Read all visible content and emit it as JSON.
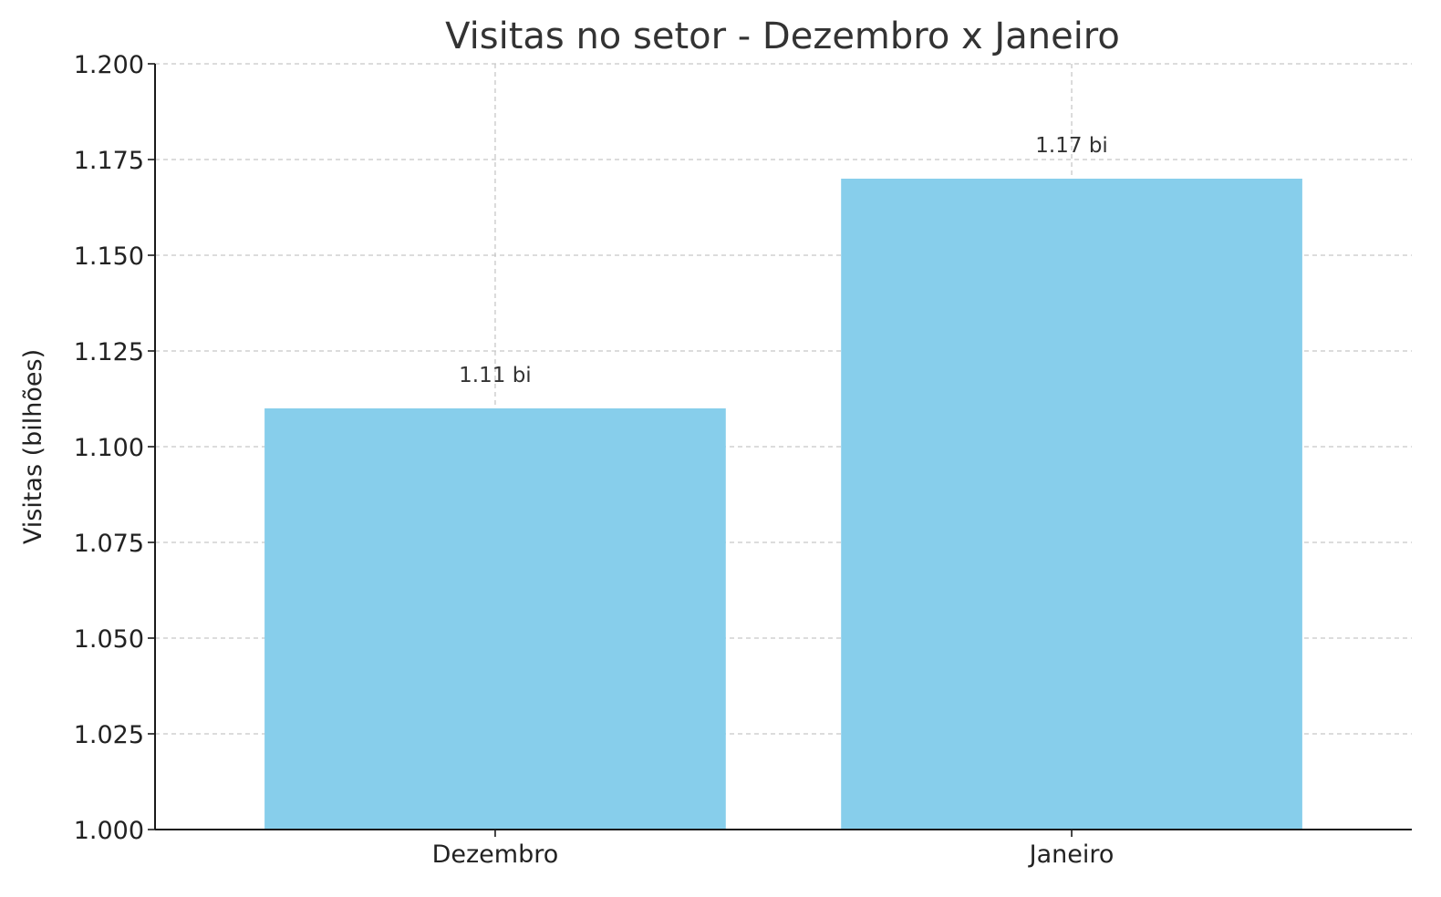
{
  "chart_data": {
    "type": "bar",
    "title": "Visitas no setor - Dezembro x Janeiro",
    "xlabel": "",
    "ylabel": "Visitas (bilhões)",
    "categories": [
      "Dezembro",
      "Janeiro"
    ],
    "values": [
      1.11,
      1.17
    ],
    "data_labels": [
      "1.11 bi",
      "1.17 bi"
    ],
    "ylim": [
      1.0,
      1.2
    ],
    "yticks": [
      1.0,
      1.025,
      1.05,
      1.075,
      1.1,
      1.125,
      1.15,
      1.175,
      1.2
    ],
    "ytick_labels": [
      "1.000",
      "1.025",
      "1.050",
      "1.075",
      "1.100",
      "1.125",
      "1.150",
      "1.175",
      "1.200"
    ],
    "grid": true,
    "legend": "none",
    "colors": {
      "bar": "#87ceeb",
      "grid": "#c8c8c8",
      "axis": "#1a1a1a"
    }
  }
}
